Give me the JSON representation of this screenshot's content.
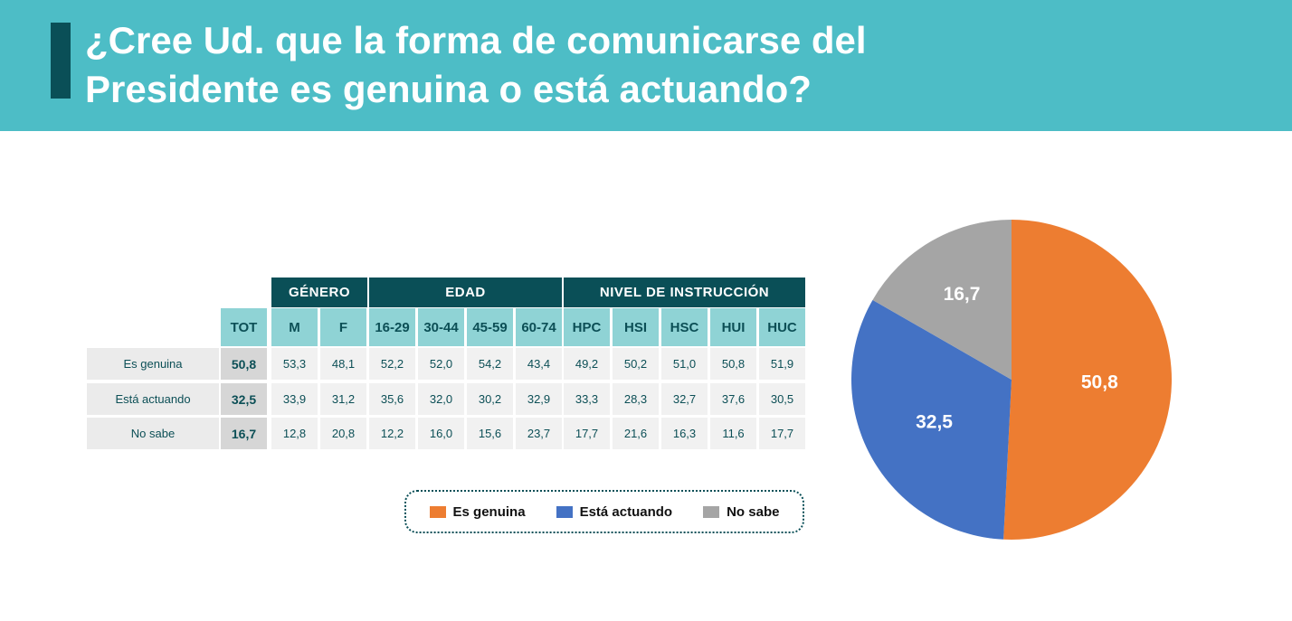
{
  "header": {
    "title_line1": "¿Cree Ud. que la forma de comunicarse del",
    "title_line2": "Presidente es genuina o está actuando?"
  },
  "table": {
    "groups": [
      "GÉNERO",
      "EDAD",
      "NIVEL DE INSTRUCCIÓN"
    ],
    "columns": [
      "TOT",
      "M",
      "F",
      "16-29",
      "30-44",
      "45-59",
      "60-74",
      "HPC",
      "HSI",
      "HSC",
      "HUI",
      "HUC"
    ],
    "rows": [
      {
        "label": "Es genuina",
        "values": [
          "50,8",
          "53,3",
          "48,1",
          "52,2",
          "52,0",
          "54,2",
          "43,4",
          "49,2",
          "50,2",
          "51,0",
          "50,8",
          "51,9"
        ]
      },
      {
        "label": "Está actuando",
        "values": [
          "32,5",
          "33,9",
          "31,2",
          "35,6",
          "32,0",
          "30,2",
          "32,9",
          "33,3",
          "28,3",
          "32,7",
          "37,6",
          "30,5"
        ]
      },
      {
        "label": "No sabe",
        "values": [
          "16,7",
          "12,8",
          "20,8",
          "12,2",
          "16,0",
          "15,6",
          "23,7",
          "17,7",
          "21,6",
          "16,3",
          "11,6",
          "17,7"
        ]
      }
    ]
  },
  "legend": [
    {
      "label": "Es genuina",
      "color": "#ed7d31"
    },
    {
      "label": "Está actuando",
      "color": "#4472c4"
    },
    {
      "label": "No sabe",
      "color": "#a5a5a5"
    }
  ],
  "chart_data": {
    "type": "pie",
    "categories": [
      "Es genuina",
      "Está actuando",
      "No sabe"
    ],
    "values": [
      50.8,
      32.5,
      16.7
    ],
    "labels": [
      "50,8",
      "32,5",
      "16,7"
    ],
    "colors": [
      "#ed7d31",
      "#4472c4",
      "#a5a5a5"
    ]
  }
}
